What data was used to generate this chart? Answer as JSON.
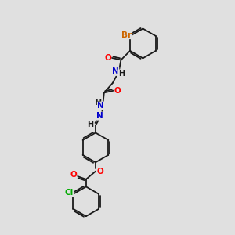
{
  "bg_color": "#e0e0e0",
  "bond_color": "#1a1a1a",
  "atom_colors": {
    "Br": "#cc6600",
    "O": "#ff0000",
    "N": "#0000cc",
    "Cl": "#00aa00",
    "H": "#1a1a1a",
    "C": "#1a1a1a"
  },
  "font_size": 7.5,
  "line_width": 1.3
}
